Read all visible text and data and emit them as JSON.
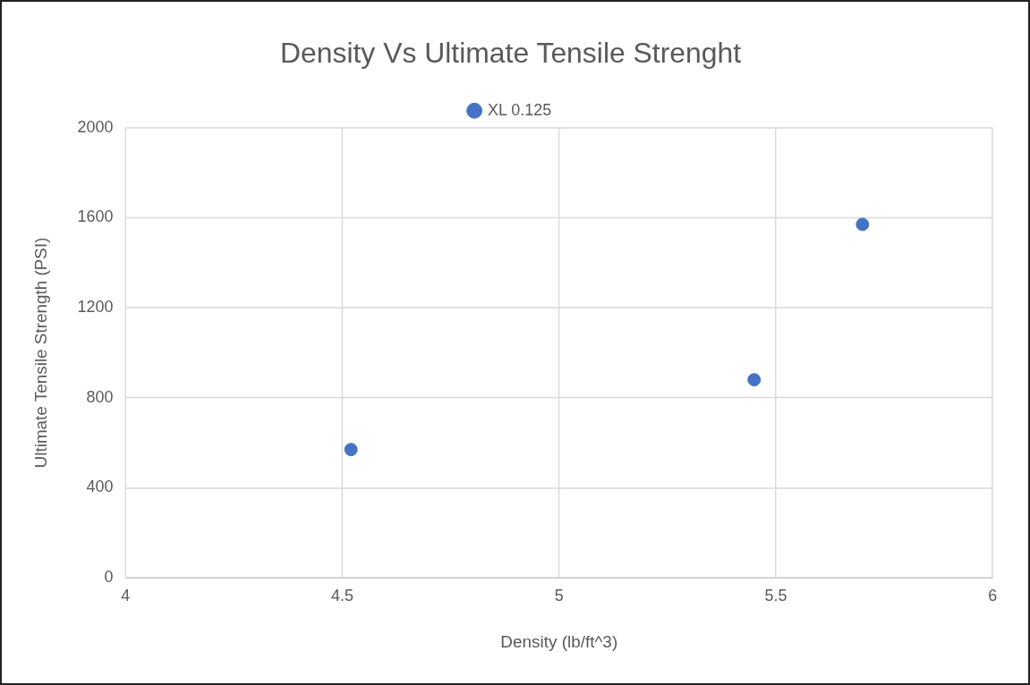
{
  "chart_data": {
    "type": "scatter",
    "title": "Density Vs Ultimate Tensile Strenght",
    "xlabel": "Density (lb/ft^3)",
    "ylabel": "Ultimate Tensile Strength (PSI)",
    "x": [
      4.52,
      5.45,
      5.7
    ],
    "series": [
      {
        "name": "XL 0.125",
        "color": "#4472c4",
        "values": [
          570,
          880,
          1570
        ]
      }
    ],
    "xlim": [
      4,
      6
    ],
    "xticks": [
      4,
      4.5,
      5,
      5.5,
      6
    ],
    "ylim": [
      0,
      2000
    ],
    "yticks": [
      0,
      400,
      800,
      1200,
      1600,
      2000
    ],
    "grid": true,
    "legend": "top",
    "marker": "circle"
  }
}
